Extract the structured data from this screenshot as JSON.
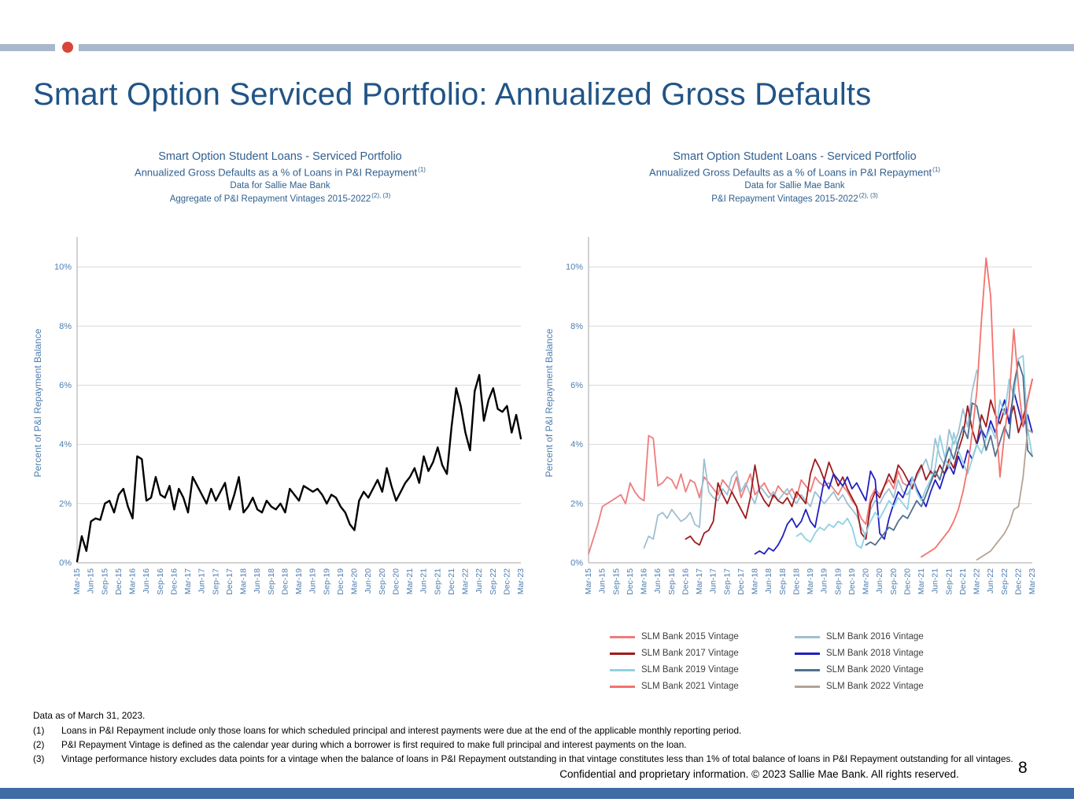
{
  "slide": {
    "title": "Smart Option Serviced Portfolio: Annualized Gross Defaults",
    "page_number": "8",
    "footer": "Confidential and proprietary information. © 2023 Sallie Mae Bank. All rights reserved.",
    "data_as_of": "Data as of March 31, 2023.",
    "footnotes": [
      {
        "num": "(1)",
        "text": "Loans in P&I Repayment include only those loans for which scheduled principal and interest payments were due at the end of the applicable monthly reporting period."
      },
      {
        "num": "(2)",
        "text": "P&I Repayment Vintage is defined as the calendar year during which a borrower is first required to make full principal and interest payments on the loan."
      },
      {
        "num": "(3)",
        "text": "Vintage performance history excludes data points for a vintage when the balance of loans in P&I Repayment outstanding in that vintage constitutes less than 1% of total balance of loans in P&I Repayment outstanding for all vintages."
      }
    ],
    "accent_colors": {
      "top_bar": "#a8b7cb",
      "red_dot": "#d8453a",
      "bottom_bar": "#3f6ba6",
      "title_blue": "#215486"
    }
  },
  "chart_data": [
    {
      "type": "line",
      "title_lines": [
        "Smart Option Student Loans - Serviced Portfolio",
        "Annualized Gross Defaults as a % of Loans in P&I Repayment",
        "Data for Sallie Mae Bank",
        "Aggregate of P&I Repayment Vintages 2015-2022"
      ],
      "title_sups": [
        "",
        "(1)",
        "",
        "(2), (3)"
      ],
      "ylabel": "Percent of P&I Repayment  Balance",
      "ylim": [
        0,
        10.8
      ],
      "yticks": [
        0,
        2,
        4,
        6,
        8,
        10
      ],
      "ytick_labels": [
        "0%",
        "2%",
        "4%",
        "6%",
        "8%",
        "10%"
      ],
      "x_tick_labels": [
        "Mar-15",
        "Jun-15",
        "Sep-15",
        "Dec-15",
        "Mar-16",
        "Jun-16",
        "Sep-16",
        "Dec-16",
        "Mar-17",
        "Jun-17",
        "Sep-17",
        "Dec-17",
        "Mar-18",
        "Jun-18",
        "Sep-18",
        "Dec-18",
        "Mar-19",
        "Jun-19",
        "Sep-19",
        "Dec-19",
        "Mar-20",
        "Jun-20",
        "Sep-20",
        "Dec-20",
        "Mar-21",
        "Jun-21",
        "Sep-21",
        "Dec-21",
        "Mar-22",
        "Jun-22",
        "Sep-22",
        "Dec-22",
        "Mar-23"
      ],
      "x_tick_step": 3,
      "n_points": 97,
      "axis_color": "#4e7eb0",
      "grid": true,
      "legend_visible": false,
      "series": [
        {
          "name": "Aggregate of Vintages",
          "color": "#000000",
          "width": 2.4,
          "start": 0,
          "values": [
            0.05,
            0.9,
            0.4,
            1.4,
            1.5,
            1.45,
            2.0,
            2.1,
            1.7,
            2.3,
            2.5,
            1.9,
            1.5,
            3.6,
            3.5,
            2.1,
            2.2,
            2.9,
            2.3,
            2.2,
            2.6,
            1.8,
            2.5,
            2.2,
            1.7,
            2.9,
            2.6,
            2.3,
            2.0,
            2.5,
            2.1,
            2.4,
            2.7,
            1.8,
            2.3,
            2.9,
            1.7,
            1.9,
            2.2,
            1.8,
            1.7,
            2.1,
            1.9,
            1.8,
            2.0,
            1.7,
            2.5,
            2.3,
            2.1,
            2.6,
            2.5,
            2.4,
            2.5,
            2.3,
            2.0,
            2.3,
            2.2,
            1.9,
            1.7,
            1.3,
            1.1,
            2.1,
            2.4,
            2.2,
            2.5,
            2.8,
            2.4,
            3.2,
            2.6,
            2.1,
            2.4,
            2.7,
            2.9,
            3.2,
            2.7,
            3.6,
            3.1,
            3.4,
            3.9,
            3.3,
            3.0,
            4.6,
            5.9,
            5.3,
            4.4,
            3.8,
            5.8,
            6.35,
            4.8,
            5.5,
            5.9,
            5.2,
            5.1,
            5.3,
            4.4,
            5.0,
            4.2
          ]
        }
      ]
    },
    {
      "type": "line",
      "title_lines": [
        "Smart Option Student Loans - Serviced Portfolio",
        "Annualized Gross Defaults as a % of Loans in P&I Repayment",
        "Data for Sallie Mae Bank",
        "P&I Repayment Vintages 2015-2022"
      ],
      "title_sups": [
        "",
        "(1)",
        "",
        "(2), (3)"
      ],
      "ylabel": "Percent of P&I Repayment  Balance",
      "ylim": [
        0,
        10.8
      ],
      "yticks": [
        0,
        2,
        4,
        6,
        8,
        10
      ],
      "ytick_labels": [
        "0%",
        "2%",
        "4%",
        "6%",
        "8%",
        "10%"
      ],
      "x_tick_labels": [
        "Mar-15",
        "Jun-15",
        "Sep-15",
        "Dec-15",
        "Mar-16",
        "Jun-16",
        "Sep-16",
        "Dec-16",
        "Mar-17",
        "Jun-17",
        "Sep-17",
        "Dec-17",
        "Mar-18",
        "Jun-18",
        "Sep-18",
        "Dec-18",
        "Mar-19",
        "Jun-19",
        "Sep-19",
        "Dec-19",
        "Mar-20",
        "Jun-20",
        "Sep-20",
        "Dec-20",
        "Mar-21",
        "Jun-21",
        "Sep-21",
        "Dec-21",
        "Mar-22",
        "Jun-22",
        "Sep-22",
        "Dec-22",
        "Mar-23"
      ],
      "x_tick_step": 3,
      "n_points": 97,
      "axis_color": "#4e7eb0",
      "grid": true,
      "legend_visible": true,
      "series": [
        {
          "name": "SLM Bank 2015 Vintage",
          "color": "#ee7c7c",
          "width": 1.8,
          "start": 0,
          "values": [
            0.3,
            0.8,
            1.3,
            1.9,
            2.0,
            2.1,
            2.2,
            2.3,
            2.0,
            2.7,
            2.4,
            2.2,
            2.1,
            4.3,
            4.2,
            2.6,
            2.7,
            2.9,
            2.8,
            2.5,
            3.0,
            2.4,
            2.8,
            2.7,
            2.2,
            2.9,
            2.7,
            2.5,
            2.3,
            2.8,
            2.6,
            2.4,
            2.9,
            2.2,
            2.6,
            3.0,
            2.3,
            2.5,
            2.7,
            2.4,
            2.2,
            2.6,
            2.4,
            2.3,
            2.5,
            2.2,
            2.8,
            2.6,
            2.4,
            2.9,
            2.7,
            2.6,
            2.7,
            2.5,
            2.3,
            2.6,
            2.4,
            2.1,
            1.9,
            1.5,
            1.3,
            2.2,
            2.5,
            2.3,
            2.6,
            2.8,
            2.5,
            3.1,
            2.7,
            2.6
          ]
        },
        {
          "name": "SLM Bank 2016 Vintage",
          "color": "#9fbfd1",
          "width": 1.8,
          "start": 12,
          "values": [
            0.5,
            0.9,
            0.8,
            1.6,
            1.7,
            1.5,
            1.8,
            1.6,
            1.4,
            1.5,
            1.7,
            1.3,
            1.2,
            3.5,
            2.4,
            2.2,
            2.1,
            2.5,
            2.3,
            2.9,
            3.1,
            2.4,
            2.7,
            2.3,
            2.0,
            2.6,
            2.4,
            2.2,
            2.4,
            2.1,
            2.3,
            2.5,
            2.2,
            2.0,
            2.3,
            2.1,
            1.9,
            2.4,
            2.2,
            2.0,
            2.2,
            2.4,
            2.1,
            2.3,
            2.0,
            1.8,
            1.6,
            1.2,
            0.9,
            1.8,
            2.1,
            2.0,
            2.3,
            2.5,
            2.2,
            2.8,
            2.4,
            2.3,
            2.6,
            2.9,
            3.2,
            3.5,
            3.0,
            4.2,
            3.6,
            3.3,
            4.5,
            4.0,
            4.4,
            5.2,
            4.6,
            5.8,
            6.5
          ]
        },
        {
          "name": "SLM Bank 2017 Vintage",
          "color": "#9e1b1e",
          "width": 1.8,
          "start": 21,
          "values": [
            0.8,
            0.9,
            0.7,
            0.6,
            1.0,
            1.1,
            1.4,
            2.7,
            2.3,
            2.0,
            2.4,
            2.1,
            1.8,
            1.5,
            2.2,
            3.3,
            2.4,
            2.1,
            1.9,
            2.3,
            2.1,
            2.0,
            2.2,
            1.9,
            2.4,
            2.2,
            2.0,
            3.0,
            3.5,
            3.2,
            2.8,
            3.4,
            3.0,
            2.6,
            2.9,
            2.5,
            2.2,
            1.9,
            1.0,
            0.8,
            2.0,
            2.4,
            2.2,
            2.6,
            3.0,
            2.7,
            3.3,
            3.1,
            2.8,
            2.5,
            3.0,
            3.3,
            2.8,
            3.1,
            2.9,
            3.3,
            3.0,
            3.5,
            3.2,
            3.8,
            4.3,
            5.3,
            4.5,
            4.0,
            5.0,
            4.6,
            5.5,
            5.0,
            4.7,
            5.2,
            4.8,
            5.3,
            4.4,
            4.9,
            5.5,
            6.2
          ]
        },
        {
          "name": "SLM Bank 2018 Vintage",
          "color": "#2020c0",
          "width": 1.8,
          "start": 36,
          "values": [
            0.3,
            0.4,
            0.3,
            0.5,
            0.4,
            0.6,
            0.9,
            1.3,
            1.5,
            1.2,
            1.4,
            1.8,
            1.4,
            1.2,
            2.0,
            2.8,
            2.5,
            3.0,
            2.8,
            2.6,
            2.9,
            2.5,
            2.7,
            2.4,
            2.1,
            3.1,
            2.8,
            1.0,
            0.8,
            1.5,
            2.0,
            2.4,
            2.2,
            2.6,
            2.9,
            2.5,
            2.2,
            1.9,
            2.4,
            2.8,
            2.5,
            3.0,
            3.3,
            3.0,
            3.6,
            3.2,
            3.8,
            3.5,
            4.0,
            4.5,
            4.2,
            4.8,
            4.4,
            5.0,
            5.5,
            4.7,
            5.8,
            5.2,
            4.6,
            5.0,
            4.4
          ]
        },
        {
          "name": "SLM Bank 2019 Vintage",
          "color": "#8fd1e2",
          "width": 1.8,
          "start": 45,
          "values": [
            0.9,
            1.0,
            0.8,
            0.7,
            1.0,
            1.2,
            1.1,
            1.3,
            1.2,
            1.4,
            1.3,
            1.5,
            1.2,
            0.6,
            0.5,
            1.0,
            1.4,
            1.7,
            1.5,
            1.8,
            2.1,
            1.9,
            2.2,
            2.0,
            1.8,
            2.9,
            2.4,
            2.1,
            2.5,
            2.8,
            3.2,
            4.3,
            3.6,
            3.2,
            4.4,
            3.8,
            3.4,
            3.0,
            3.5,
            4.0,
            3.7,
            4.2,
            4.6,
            4.2,
            5.5,
            5.0,
            6.2,
            5.6,
            6.9,
            7.0,
            4.5,
            3.6
          ]
        },
        {
          "name": "SLM Bank 2020 Vintage",
          "color": "#50718f",
          "width": 1.8,
          "start": 60,
          "values": [
            0.6,
            0.7,
            0.6,
            0.8,
            1.0,
            1.2,
            1.1,
            1.4,
            1.6,
            1.5,
            1.8,
            2.1,
            1.9,
            2.3,
            2.7,
            3.1,
            2.8,
            3.4,
            3.9,
            3.5,
            4.1,
            4.6,
            4.2,
            5.4,
            5.3,
            4.5,
            3.8,
            4.3,
            3.6,
            4.1,
            4.6,
            4.2,
            6.0,
            6.8,
            6.3,
            3.8,
            3.6
          ]
        },
        {
          "name": "SLM Bank 2021 Vintage",
          "color": "#f4726c",
          "width": 1.8,
          "start": 72,
          "values": [
            0.2,
            0.3,
            0.4,
            0.5,
            0.7,
            0.9,
            1.1,
            1.4,
            1.8,
            2.4,
            3.2,
            4.4,
            5.8,
            8.2,
            10.3,
            9.0,
            5.2,
            2.9,
            4.4,
            5.5,
            7.9,
            6.0,
            4.6,
            5.5,
            6.2
          ]
        },
        {
          "name": "SLM Bank 2022 Vintage",
          "color": "#b3a395",
          "width": 1.8,
          "start": 84,
          "values": [
            0.1,
            0.2,
            0.3,
            0.4,
            0.6,
            0.8,
            1.0,
            1.3,
            1.8,
            1.9,
            2.9,
            4.5,
            4.4
          ]
        }
      ]
    }
  ]
}
